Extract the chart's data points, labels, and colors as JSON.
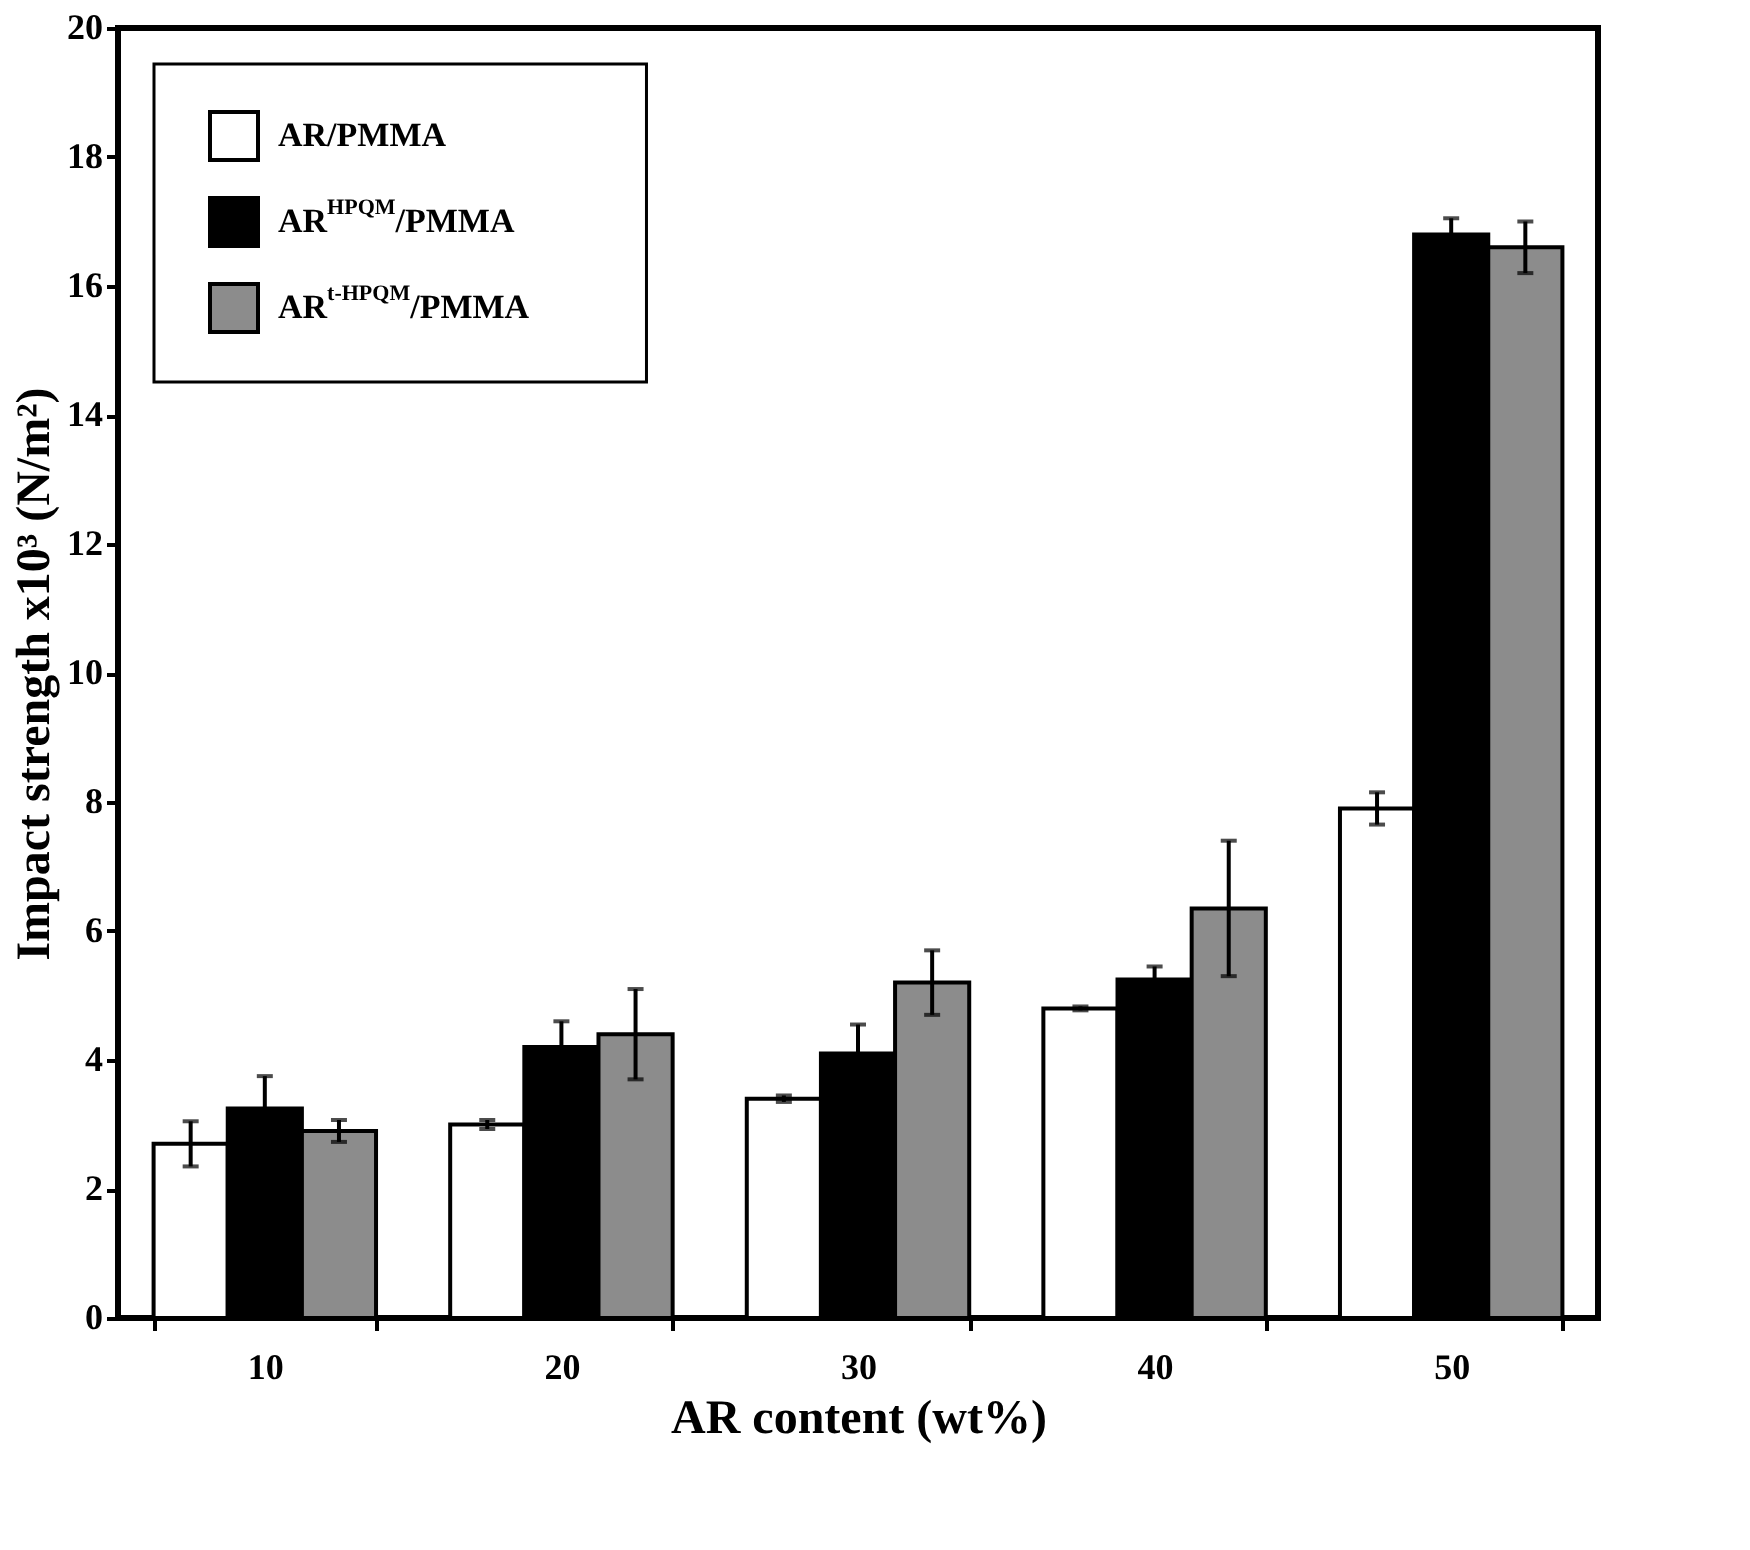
{
  "chart_data": {
    "type": "bar",
    "xlabel": "AR content (wt%)",
    "ylabel": "Impact strength x10³ (N/m²)",
    "categories": [
      "10",
      "20",
      "30",
      "40",
      "50"
    ],
    "series": [
      {
        "name": "AR/PMMA",
        "color": "#ffffff",
        "values": [
          2.7,
          3.0,
          3.4,
          4.8,
          7.9
        ],
        "errors": [
          0.35,
          0.07,
          0.05,
          0.03,
          0.25
        ]
      },
      {
        "name": "AR$^{HPQM}$/PMMA",
        "color": "#000000",
        "values": [
          3.25,
          4.2,
          4.1,
          5.25,
          16.8
        ],
        "errors": [
          0.5,
          0.4,
          0.45,
          0.2,
          0.25
        ]
      },
      {
        "name": "AR$^{t-HPQM}$/PMMA",
        "color": "#8c8c8c",
        "values": [
          2.9,
          4.4,
          5.2,
          6.35,
          16.6
        ],
        "errors": [
          0.17,
          0.7,
          0.5,
          1.05,
          0.4
        ]
      }
    ],
    "ylim": [
      0,
      20
    ],
    "yticks": [
      0,
      2,
      4,
      6,
      8,
      10,
      12,
      14,
      16,
      18,
      20
    ],
    "grid": false,
    "legend": "top left"
  }
}
